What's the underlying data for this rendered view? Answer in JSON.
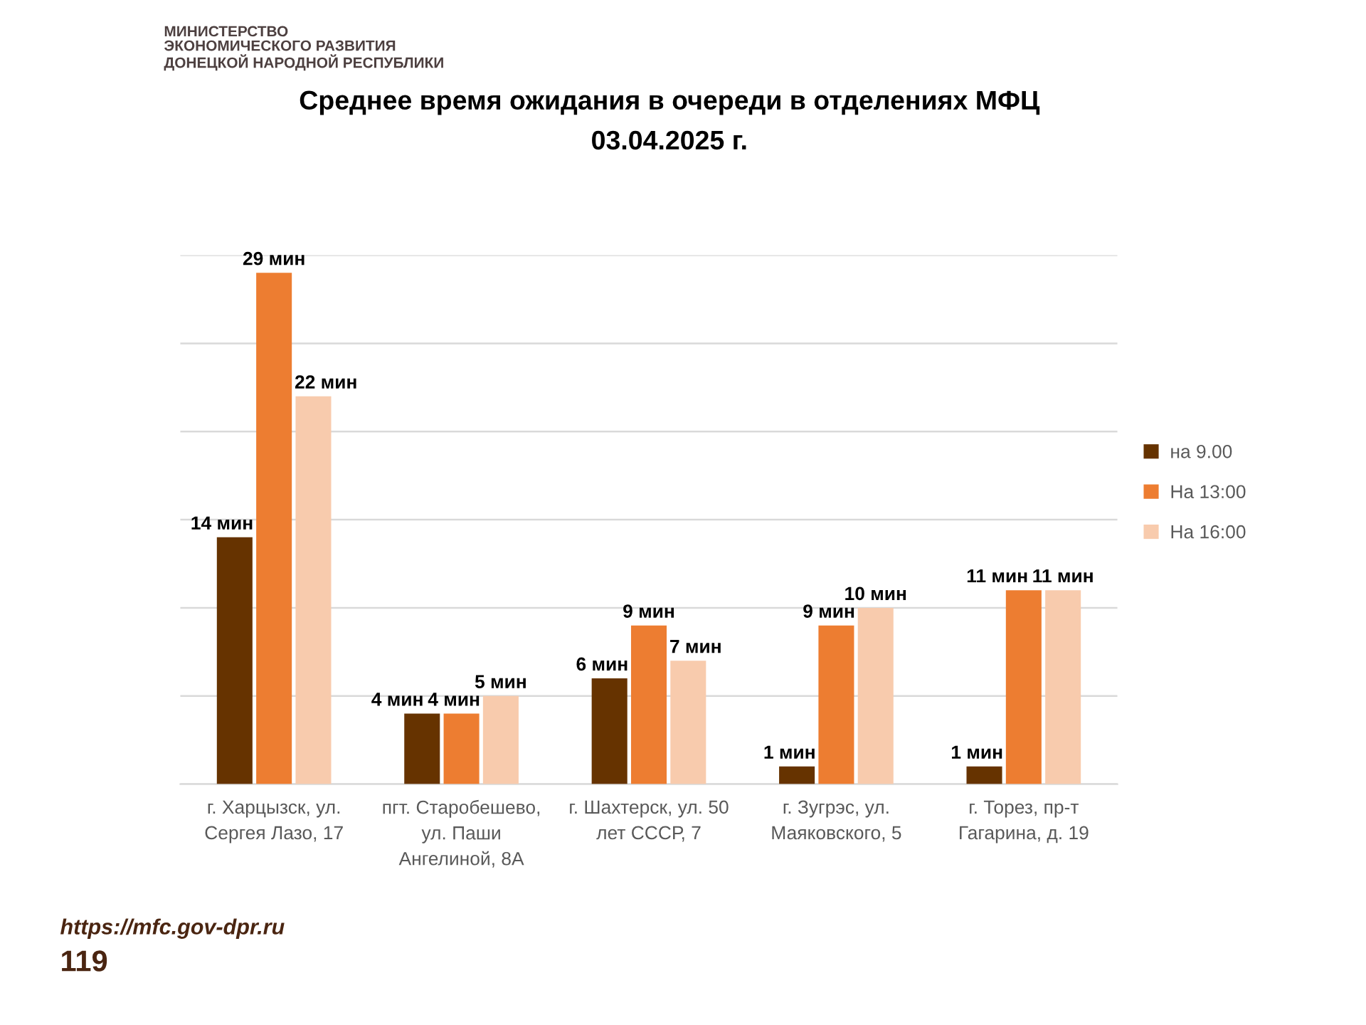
{
  "chart_data": {
    "type": "bar",
    "title": "Среднее время ожидания в очереди в отделениях МФЦ",
    "subtitle": "03.04.2025 г.",
    "categories": [
      "г. Харцызск, ул.\nСергея Лазо, 17",
      "пгт. Старобешево,\nул. Паши\nАнгелиной, 8А",
      "г. Шахтерск, ул. 50\nлет СССР, 7",
      "г. Зугрэс, ул.\nМаяковского, 5",
      "г. Торез, пр-т\nГагарина, д. 19"
    ],
    "series": [
      {
        "name": "на 9.00",
        "color": "#663300",
        "values": [
          14,
          4,
          6,
          1,
          1
        ],
        "value_labels": [
          "14 мин",
          "4 мин",
          "6 мин",
          "1 мин",
          "1 мин"
        ]
      },
      {
        "name": "На 13:00",
        "color": "#ed7d31",
        "values": [
          29,
          4,
          9,
          9,
          11
        ],
        "value_labels": [
          "29 мин",
          "4 мин",
          "9 мин",
          "9 мин",
          "11 мин"
        ]
      },
      {
        "name": "На 16:00",
        "color": "#f8cbad",
        "values": [
          22,
          5,
          7,
          10,
          11
        ],
        "value_labels": [
          "22 мин",
          "5 мин",
          "7 мин",
          "10 мин",
          "11 мин"
        ]
      }
    ],
    "ylim": [
      0,
      30
    ],
    "yticks": [
      {
        "value": 0,
        "label": null
      },
      {
        "value": 5,
        "label": null
      },
      {
        "value": 10,
        "label": null
      },
      {
        "value": 15,
        "label": null
      },
      {
        "value": 20,
        "label": null
      },
      {
        "value": 25,
        "label": null
      },
      {
        "value": 30,
        "label": null
      }
    ],
    "grid": "y",
    "legend": "right",
    "tick_labels": "x",
    "annotations": [
      "МИНИСТЕРСТВО\nЭКОНОМИЧЕСКОГО РАЗВИТИЯ\nДОНЕЦКОЙ НАРОДНОЙ РЕСПУБЛИКИ",
      "https://mfc.gov-dpr.ru",
      "119"
    ]
  }
}
